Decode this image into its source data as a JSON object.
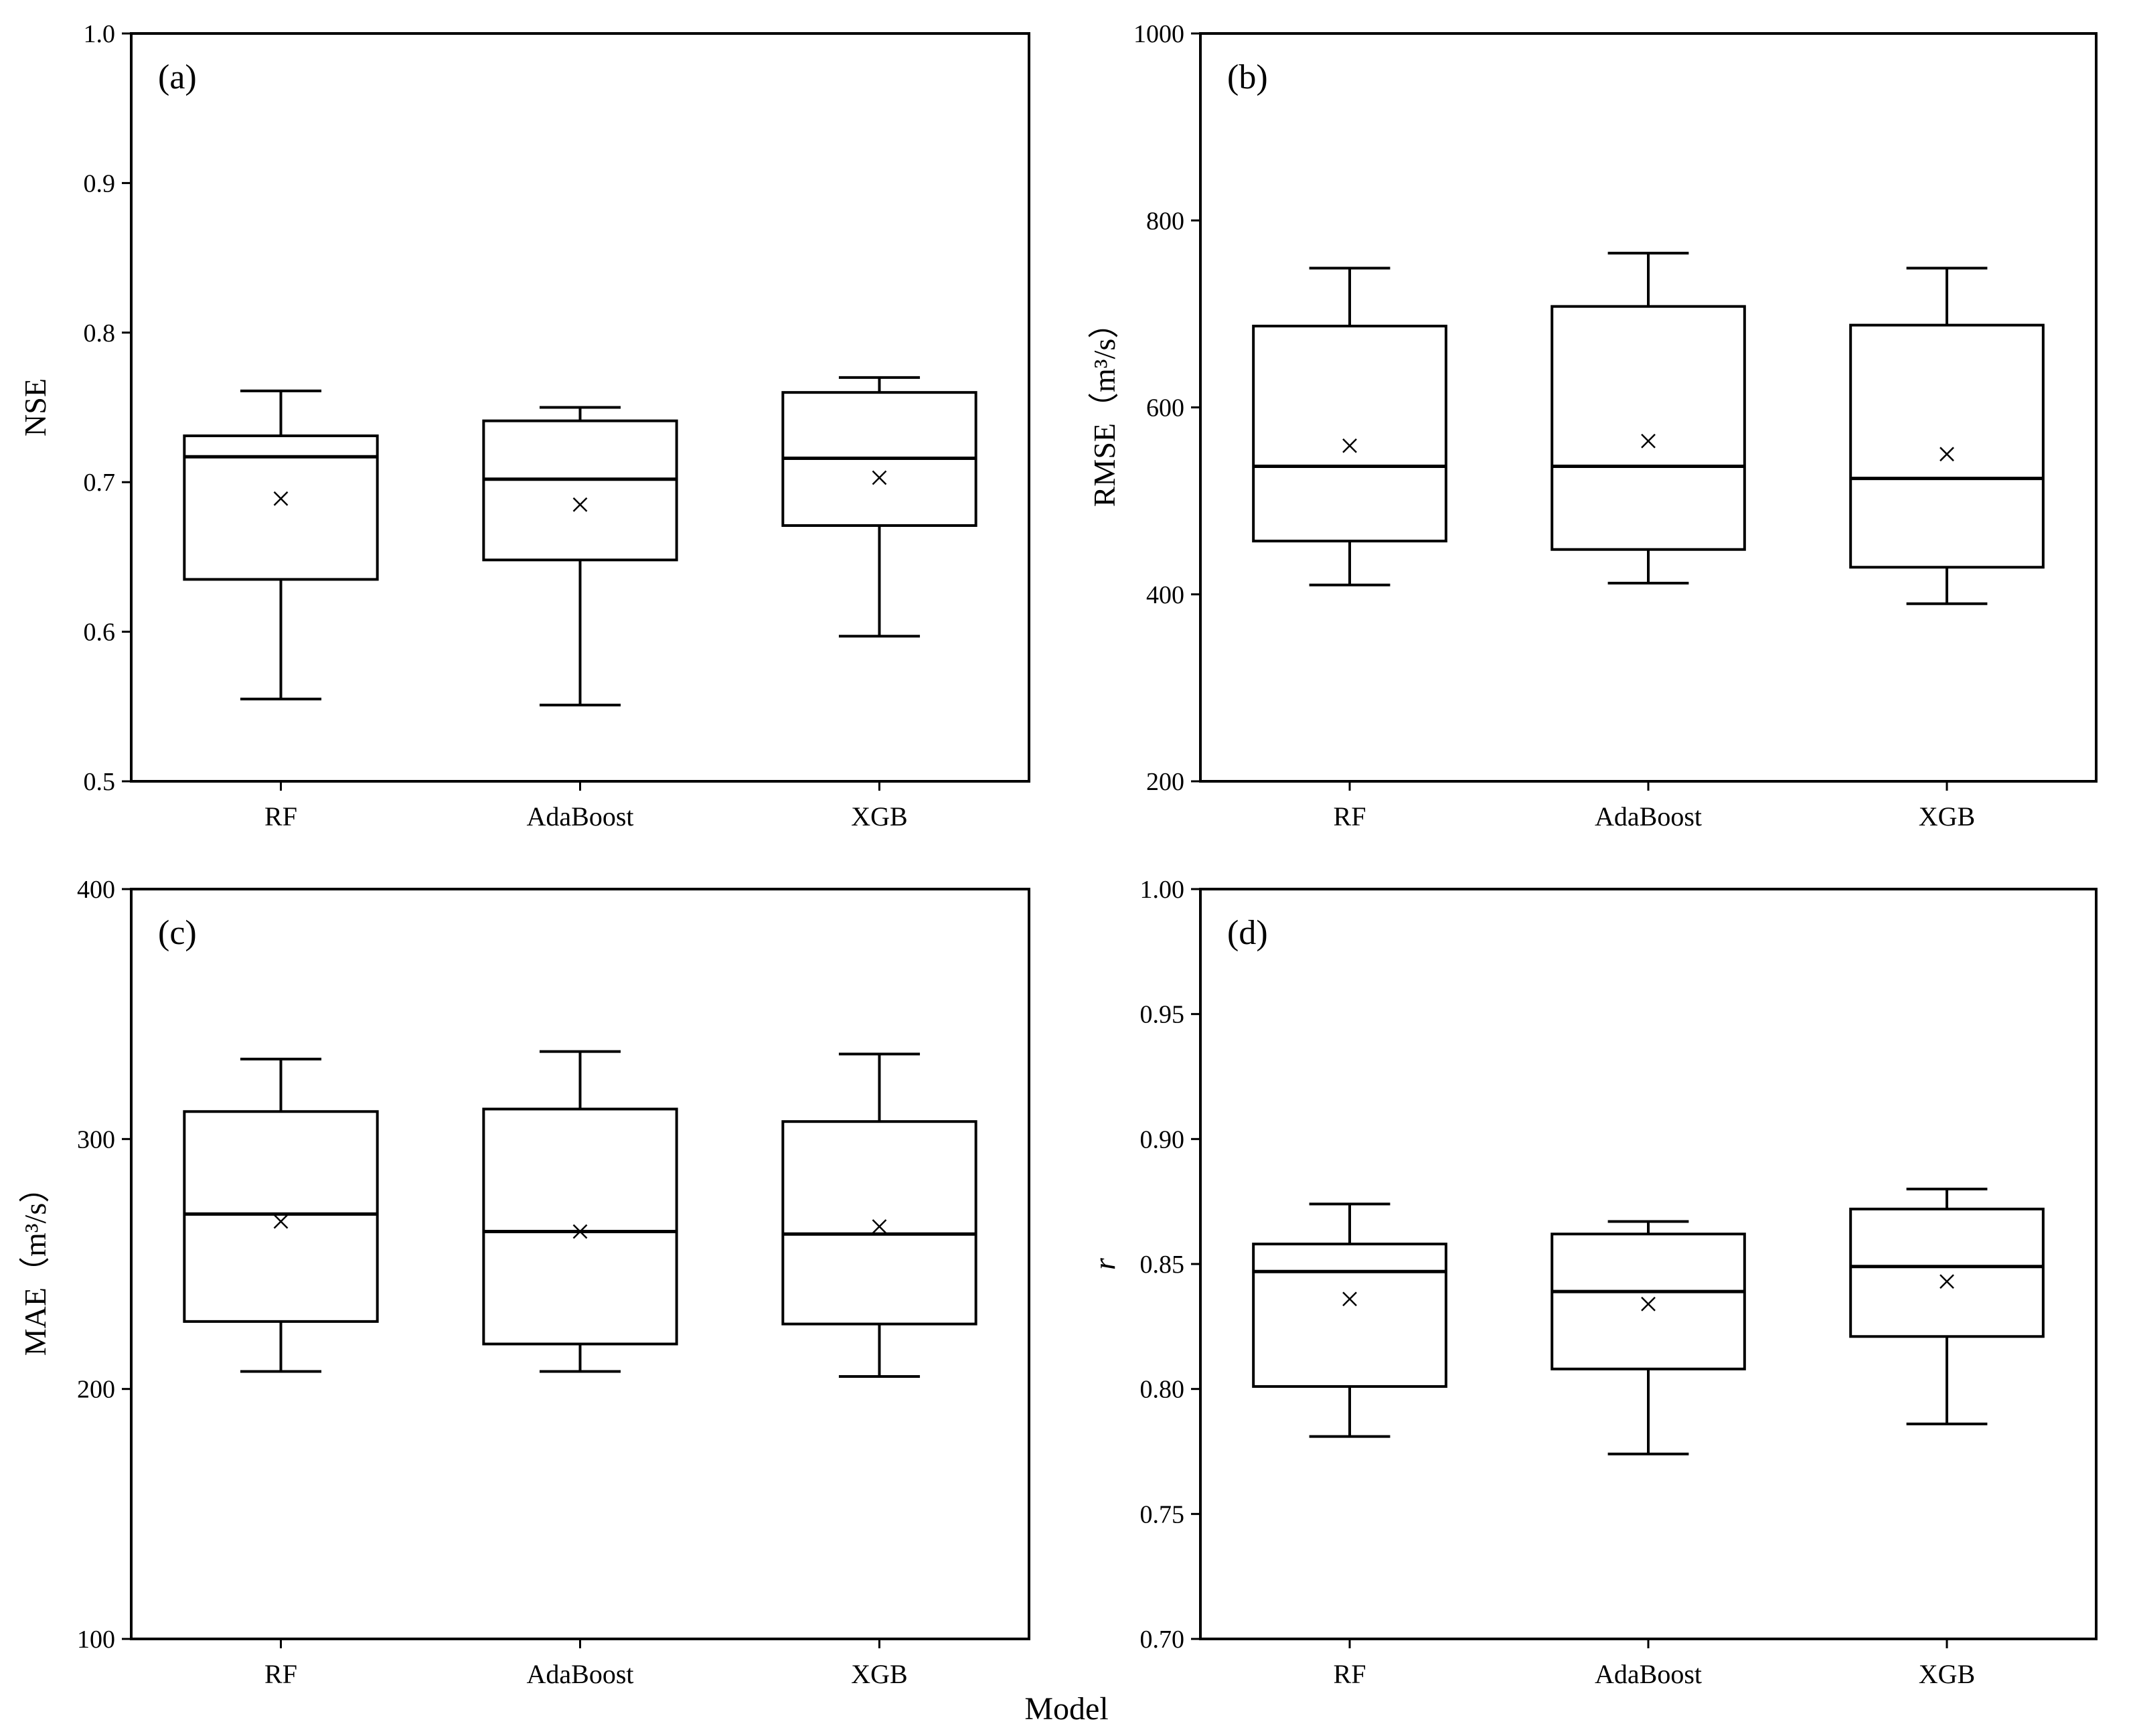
{
  "figure": {
    "x_axis_title": "Model"
  },
  "chart_data": [
    {
      "type": "box",
      "panel_label": "(a)",
      "ylabel": "NSE",
      "ylabel_italic": false,
      "ylim": [
        0.5,
        1.0
      ],
      "yticks": [
        0.5,
        0.6,
        0.7,
        0.8,
        0.9,
        1.0
      ],
      "ytick_labels": [
        "0.5",
        "0.6",
        "0.7",
        "0.8",
        "0.9",
        "1.0"
      ],
      "categories": [
        "RF",
        "AdaBoost",
        "XGB"
      ],
      "boxes": [
        {
          "whisker_low": 0.555,
          "q1": 0.635,
          "median": 0.717,
          "q3": 0.731,
          "whisker_high": 0.761,
          "mean": 0.689
        },
        {
          "whisker_low": 0.551,
          "q1": 0.648,
          "median": 0.702,
          "q3": 0.741,
          "whisker_high": 0.75,
          "mean": 0.685
        },
        {
          "whisker_low": 0.597,
          "q1": 0.671,
          "median": 0.716,
          "q3": 0.76,
          "whisker_high": 0.77,
          "mean": 0.703
        }
      ]
    },
    {
      "type": "box",
      "panel_label": "(b)",
      "ylabel": "RMSE（m³/s）",
      "ylabel_italic": false,
      "ylim": [
        200,
        1000
      ],
      "yticks": [
        200,
        400,
        600,
        800,
        1000
      ],
      "ytick_labels": [
        "200",
        "400",
        "600",
        "800",
        "1000"
      ],
      "categories": [
        "RF",
        "AdaBoost",
        "XGB"
      ],
      "boxes": [
        {
          "whisker_low": 410,
          "q1": 457,
          "median": 537,
          "q3": 687,
          "whisker_high": 749,
          "mean": 559
        },
        {
          "whisker_low": 412,
          "q1": 448,
          "median": 537,
          "q3": 708,
          "whisker_high": 765,
          "mean": 564
        },
        {
          "whisker_low": 390,
          "q1": 429,
          "median": 524,
          "q3": 688,
          "whisker_high": 749,
          "mean": 550
        }
      ]
    },
    {
      "type": "box",
      "panel_label": "(c)",
      "ylabel": "MAE（m³/s）",
      "ylabel_italic": false,
      "ylim": [
        100,
        400
      ],
      "yticks": [
        100,
        200,
        300,
        400
      ],
      "ytick_labels": [
        "100",
        "200",
        "300",
        "400"
      ],
      "categories": [
        "RF",
        "AdaBoost",
        "XGB"
      ],
      "boxes": [
        {
          "whisker_low": 207,
          "q1": 227,
          "median": 270,
          "q3": 311,
          "whisker_high": 332,
          "mean": 267
        },
        {
          "whisker_low": 207,
          "q1": 218,
          "median": 263,
          "q3": 312,
          "whisker_high": 335,
          "mean": 263
        },
        {
          "whisker_low": 205,
          "q1": 226,
          "median": 262,
          "q3": 307,
          "whisker_high": 334,
          "mean": 265
        }
      ]
    },
    {
      "type": "box",
      "panel_label": "(d)",
      "ylabel": "r",
      "ylabel_italic": true,
      "ylim": [
        0.7,
        1.0
      ],
      "yticks": [
        0.7,
        0.75,
        0.8,
        0.85,
        0.9,
        0.95,
        1.0
      ],
      "ytick_labels": [
        "0.70",
        "0.75",
        "0.80",
        "0.85",
        "0.90",
        "0.95",
        "1.00"
      ],
      "categories": [
        "RF",
        "AdaBoost",
        "XGB"
      ],
      "boxes": [
        {
          "whisker_low": 0.781,
          "q1": 0.801,
          "median": 0.847,
          "q3": 0.858,
          "whisker_high": 0.874,
          "mean": 0.836
        },
        {
          "whisker_low": 0.774,
          "q1": 0.808,
          "median": 0.839,
          "q3": 0.862,
          "whisker_high": 0.867,
          "mean": 0.834
        },
        {
          "whisker_low": 0.786,
          "q1": 0.821,
          "median": 0.849,
          "q3": 0.872,
          "whisker_high": 0.88,
          "mean": 0.843
        }
      ]
    }
  ]
}
